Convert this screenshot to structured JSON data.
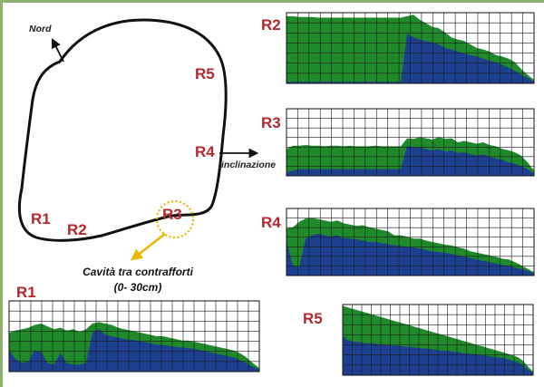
{
  "plan": {
    "north_label": "Nord",
    "slope_label": "inclinazione",
    "cavity_caption_line1": "Cavità tra contrafforti",
    "cavity_caption_line2": "(0- 30cm)",
    "markers": [
      "R1",
      "R2",
      "R3",
      "R4",
      "R5"
    ]
  },
  "colors": {
    "upper_layer": "#1f8a2a",
    "lower_layer": "#1c3f8f",
    "grid": "#1a1a1a",
    "marker_text": "#b3282d",
    "arrow_yellow": "#e6b800",
    "frame": "#8fb16f"
  },
  "chart_data": [
    {
      "type": "area",
      "id": "R2",
      "label": "R2",
      "x_ticks": 22,
      "top": [
        0.95,
        0.95,
        0.94,
        0.94,
        0.94,
        0.93,
        0.93,
        0.93,
        0.93,
        0.93,
        0.93,
        0.93,
        0.93,
        0.93,
        0.93,
        0.93,
        0.93,
        0.93,
        0.93,
        0.95,
        0.97,
        0.9,
        0.85,
        0.8,
        0.78,
        0.72,
        0.65,
        0.62,
        0.6,
        0.55,
        0.5,
        0.48,
        0.45,
        0.4,
        0.38,
        0.35,
        0.3,
        0.2,
        0.12,
        0.05
      ],
      "split": [
        0.02,
        0.02,
        0.02,
        0.02,
        0.02,
        0.02,
        0.02,
        0.02,
        0.02,
        0.02,
        0.02,
        0.02,
        0.02,
        0.02,
        0.02,
        0.02,
        0.02,
        0.02,
        0.02,
        0.7,
        0.65,
        0.62,
        0.6,
        0.58,
        0.55,
        0.5,
        0.48,
        0.45,
        0.42,
        0.4,
        0.38,
        0.35,
        0.32,
        0.3,
        0.26,
        0.22,
        0.18,
        0.12,
        0.08,
        0.02
      ]
    },
    {
      "type": "area",
      "id": "R3",
      "label": "R3",
      "x_ticks": 22,
      "top": [
        0.4,
        0.45,
        0.45,
        0.46,
        0.45,
        0.45,
        0.44,
        0.45,
        0.45,
        0.44,
        0.45,
        0.44,
        0.44,
        0.44,
        0.45,
        0.44,
        0.44,
        0.44,
        0.44,
        0.56,
        0.55,
        0.58,
        0.56,
        0.54,
        0.58,
        0.55,
        0.56,
        0.5,
        0.52,
        0.5,
        0.48,
        0.5,
        0.46,
        0.44,
        0.4,
        0.38,
        0.35,
        0.3,
        0.2,
        0.08
      ],
      "split": [
        0.05,
        0.08,
        0.1,
        0.1,
        0.1,
        0.1,
        0.1,
        0.1,
        0.1,
        0.1,
        0.1,
        0.1,
        0.1,
        0.1,
        0.1,
        0.1,
        0.1,
        0.1,
        0.1,
        0.45,
        0.42,
        0.42,
        0.4,
        0.38,
        0.4,
        0.36,
        0.38,
        0.34,
        0.35,
        0.32,
        0.3,
        0.32,
        0.28,
        0.26,
        0.24,
        0.2,
        0.18,
        0.14,
        0.1,
        0.03
      ]
    },
    {
      "type": "area",
      "id": "R4",
      "label": "R4",
      "x_ticks": 22,
      "top": [
        0.7,
        0.72,
        0.8,
        0.85,
        0.86,
        0.84,
        0.82,
        0.8,
        0.82,
        0.78,
        0.76,
        0.74,
        0.75,
        0.72,
        0.7,
        0.68,
        0.66,
        0.6,
        0.6,
        0.58,
        0.55,
        0.55,
        0.52,
        0.5,
        0.48,
        0.46,
        0.45,
        0.42,
        0.4,
        0.36,
        0.34,
        0.32,
        0.3,
        0.28,
        0.25,
        0.24,
        0.2,
        0.15,
        0.1,
        0.05
      ],
      "split": [
        0.5,
        0.15,
        0.12,
        0.55,
        0.6,
        0.62,
        0.6,
        0.58,
        0.6,
        0.56,
        0.55,
        0.54,
        0.52,
        0.5,
        0.5,
        0.48,
        0.47,
        0.45,
        0.44,
        0.42,
        0.42,
        0.4,
        0.38,
        0.36,
        0.35,
        0.34,
        0.32,
        0.3,
        0.28,
        0.26,
        0.24,
        0.22,
        0.2,
        0.18,
        0.16,
        0.14,
        0.12,
        0.1,
        0.07,
        0.03
      ]
    },
    {
      "type": "area",
      "id": "R1",
      "label": "R1",
      "x_ticks": 23,
      "top": [
        0.55,
        0.58,
        0.6,
        0.62,
        0.66,
        0.68,
        0.64,
        0.6,
        0.62,
        0.58,
        0.6,
        0.56,
        0.6,
        0.68,
        0.7,
        0.68,
        0.66,
        0.62,
        0.6,
        0.58,
        0.56,
        0.54,
        0.52,
        0.5,
        0.5,
        0.48,
        0.46,
        0.44,
        0.44,
        0.42,
        0.4,
        0.38,
        0.36,
        0.34,
        0.32,
        0.3,
        0.26,
        0.2,
        0.12,
        0.05
      ],
      "split": [
        0.3,
        0.18,
        0.12,
        0.14,
        0.3,
        0.28,
        0.12,
        0.1,
        0.26,
        0.12,
        0.1,
        0.1,
        0.12,
        0.55,
        0.6,
        0.52,
        0.5,
        0.48,
        0.46,
        0.45,
        0.44,
        0.42,
        0.4,
        0.38,
        0.38,
        0.36,
        0.35,
        0.34,
        0.33,
        0.32,
        0.3,
        0.28,
        0.26,
        0.24,
        0.22,
        0.2,
        0.16,
        0.12,
        0.07,
        0.03
      ]
    },
    {
      "type": "area",
      "id": "R5",
      "label": "R5",
      "x_ticks": 20,
      "top": [
        0.98,
        0.96,
        0.94,
        0.92,
        0.9,
        0.88,
        0.86,
        0.84,
        0.82,
        0.8,
        0.78,
        0.76,
        0.74,
        0.72,
        0.7,
        0.68,
        0.66,
        0.64,
        0.62,
        0.6,
        0.58,
        0.56,
        0.54,
        0.52,
        0.5,
        0.48,
        0.46,
        0.44,
        0.42,
        0.4,
        0.38,
        0.36,
        0.34,
        0.32,
        0.3,
        0.28,
        0.25,
        0.2,
        0.12,
        0.05
      ],
      "split": [
        0.55,
        0.5,
        0.48,
        0.47,
        0.46,
        0.45,
        0.45,
        0.44,
        0.44,
        0.43,
        0.42,
        0.42,
        0.41,
        0.4,
        0.4,
        0.39,
        0.38,
        0.38,
        0.37,
        0.36,
        0.35,
        0.35,
        0.34,
        0.33,
        0.32,
        0.31,
        0.3,
        0.3,
        0.29,
        0.28,
        0.27,
        0.26,
        0.25,
        0.24,
        0.22,
        0.2,
        0.18,
        0.14,
        0.08,
        0.03
      ]
    }
  ]
}
